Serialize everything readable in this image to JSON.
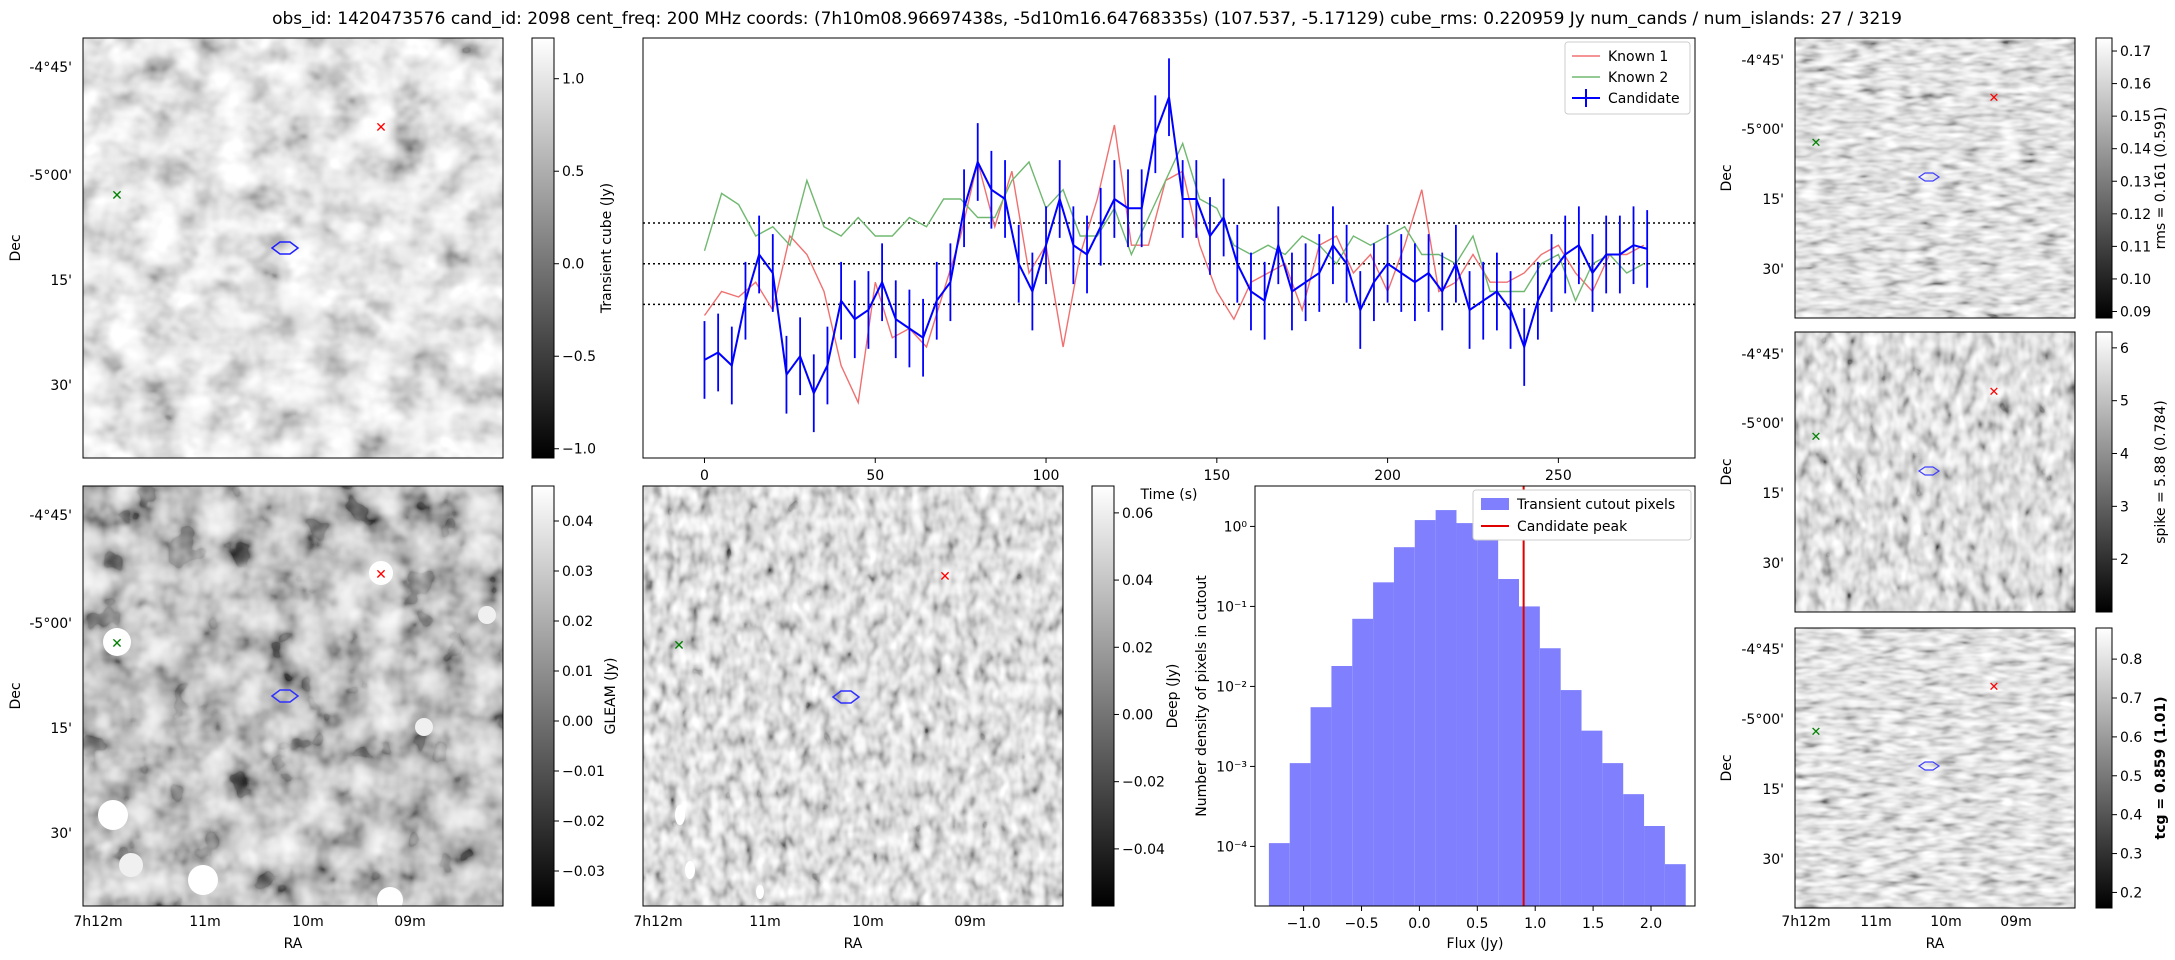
{
  "figure": {
    "title": "obs_id: 1420473576 cand_id: 2098 cent_freq: 200 MHz coords: (7h10m08.96697438s, -5d10m16.64768335s) (107.537, -5.17129) cube_rms: 0.220959 Jy num_cands / num_islands: 27 / 3219"
  },
  "sky_axes": {
    "dec_ticks": [
      "-4°45'",
      "-5°00'",
      "15'",
      "30'"
    ],
    "ra_ticks": [
      "7h12m",
      "11m",
      "10m",
      "09m"
    ],
    "dec_label": "Dec",
    "ra_label": "RA"
  },
  "chart_data": [
    {
      "id": "transient-cube-image",
      "type": "heatmap",
      "colorbar_label": "",
      "colorbar_ticks": [
        "1.0",
        "0.5",
        "0.0",
        "−0.5",
        "−1.0"
      ],
      "colorbar_values": [
        1.0,
        0.5,
        0.0,
        -0.5,
        -1.0
      ],
      "clim": [
        -1.05,
        1.22
      ],
      "markers": [
        {
          "color": "#ff0000",
          "symbol": "x",
          "ra_frac": 0.71,
          "dec_frac": 0.21
        },
        {
          "color": "#008000",
          "symbol": "x",
          "ra_frac": 0.08,
          "dec_frac": 0.37
        }
      ]
    },
    {
      "id": "lightcurve",
      "type": "line",
      "xlabel": "Time (s)",
      "ylabel": "Transient cube (Jy)",
      "xlim": [
        -18,
        290
      ],
      "ylim": [
        -1.05,
        1.22
      ],
      "x_ticks": [
        0,
        50,
        100,
        150,
        200,
        250
      ],
      "threshold_lines": [
        0.22,
        0.0,
        -0.22
      ],
      "legend": [
        "Known 1",
        "Known 2",
        "Candidate"
      ],
      "series": [
        {
          "name": "Known 1",
          "color": "#f07070",
          "x": [
            0,
            5,
            10,
            15,
            20,
            25,
            30,
            35,
            40,
            45,
            50,
            55,
            60,
            65,
            70,
            75,
            80,
            85,
            90,
            95,
            100,
            105,
            110,
            115,
            120,
            125,
            130,
            135,
            140,
            145,
            150,
            155,
            160,
            165,
            170,
            175,
            180,
            185,
            190,
            195,
            200,
            205,
            210,
            215,
            220,
            225,
            230,
            235,
            240,
            245,
            250,
            255,
            260,
            265,
            270,
            275
          ],
          "values": [
            -0.28,
            -0.15,
            -0.18,
            -0.1,
            -0.25,
            0.15,
            0.05,
            -0.15,
            -0.55,
            -0.75,
            -0.1,
            -0.4,
            -0.35,
            -0.45,
            -0.15,
            0.15,
            0.55,
            0.2,
            0.5,
            -0.05,
            0.1,
            -0.45,
            0.05,
            0.35,
            0.75,
            0.1,
            0.1,
            0.45,
            0.5,
            0.1,
            -0.15,
            -0.3,
            -0.1,
            -0.05,
            0.0,
            -0.25,
            0.1,
            0.15,
            -0.05,
            0.05,
            -0.15,
            0.1,
            0.4,
            -0.15,
            -0.1,
            0.05,
            -0.1,
            -0.1,
            -0.05,
            0.05,
            0.1,
            -0.05,
            -0.15,
            0.05,
            0.05,
            0.1
          ]
        },
        {
          "name": "Known 2",
          "color": "#70b870",
          "x": [
            0,
            5,
            10,
            15,
            20,
            25,
            30,
            35,
            40,
            45,
            50,
            55,
            60,
            65,
            70,
            75,
            80,
            85,
            90,
            95,
            100,
            105,
            110,
            115,
            120,
            125,
            130,
            135,
            140,
            145,
            150,
            155,
            160,
            165,
            170,
            175,
            180,
            185,
            190,
            195,
            200,
            205,
            210,
            215,
            220,
            225,
            230,
            235,
            240,
            245,
            250,
            255,
            260,
            265,
            270,
            275
          ],
          "values": [
            0.07,
            0.38,
            0.32,
            0.15,
            0.2,
            0.1,
            0.45,
            0.2,
            0.15,
            0.25,
            0.15,
            0.15,
            0.25,
            0.2,
            0.35,
            0.35,
            0.25,
            0.25,
            0.45,
            0.55,
            0.3,
            0.4,
            0.15,
            0.15,
            0.3,
            0.05,
            0.25,
            0.45,
            0.65,
            0.35,
            0.3,
            0.1,
            0.05,
            0.1,
            0.05,
            0.15,
            0.1,
            0.0,
            0.15,
            0.1,
            0.15,
            0.2,
            0.05,
            0.05,
            0.0,
            0.15,
            -0.15,
            -0.15,
            -0.15,
            0.0,
            0.05,
            -0.2,
            0.0,
            0.05,
            -0.05,
            0.0
          ]
        },
        {
          "name": "Candidate",
          "color": "#0000ff",
          "x": [
            0,
            4,
            8,
            12,
            16,
            20,
            24,
            28,
            32,
            36,
            40,
            44,
            48,
            52,
            56,
            60,
            64,
            68,
            72,
            76,
            80,
            84,
            88,
            92,
            96,
            100,
            104,
            108,
            112,
            116,
            120,
            124,
            128,
            132,
            136,
            140,
            144,
            148,
            152,
            156,
            160,
            164,
            168,
            172,
            176,
            180,
            184,
            188,
            192,
            196,
            200,
            204,
            208,
            212,
            216,
            220,
            224,
            228,
            232,
            236,
            240,
            244,
            248,
            252,
            256,
            260,
            264,
            268,
            272,
            276
          ],
          "values": [
            -0.52,
            -0.48,
            -0.55,
            -0.2,
            0.05,
            -0.05,
            -0.6,
            -0.5,
            -0.7,
            -0.55,
            -0.2,
            -0.3,
            -0.25,
            -0.1,
            -0.3,
            -0.35,
            -0.4,
            -0.2,
            -0.1,
            0.3,
            0.55,
            0.4,
            0.35,
            0.0,
            -0.15,
            0.1,
            0.35,
            0.1,
            0.05,
            0.2,
            0.35,
            0.3,
            0.3,
            0.7,
            0.9,
            0.35,
            0.35,
            0.15,
            0.25,
            0.0,
            -0.15,
            -0.2,
            0.1,
            -0.15,
            -0.1,
            -0.05,
            0.1,
            0.0,
            -0.25,
            -0.1,
            0.0,
            -0.05,
            -0.1,
            -0.05,
            -0.15,
            0.0,
            -0.25,
            -0.2,
            -0.15,
            -0.25,
            -0.45,
            -0.2,
            -0.05,
            0.05,
            0.1,
            -0.05,
            0.05,
            0.05,
            0.1,
            0.08
          ],
          "err": 0.21
        }
      ]
    },
    {
      "id": "rms-image",
      "type": "heatmap",
      "colorbar_label": "rms = 0.161 (0.591)",
      "colorbar_ticks": [
        "0.17",
        "0.16",
        "0.15",
        "0.14",
        "0.13",
        "0.12",
        "0.11",
        "0.10",
        "0.09"
      ],
      "colorbar_values": [
        0.17,
        0.16,
        0.15,
        0.14,
        0.13,
        0.12,
        0.11,
        0.1,
        0.09
      ],
      "clim": [
        0.088,
        0.174
      ]
    },
    {
      "id": "spike-image",
      "type": "heatmap",
      "colorbar_label": "spike = 5.88 (0.784)",
      "colorbar_ticks": [
        "6",
        "5",
        "4",
        "3",
        "2"
      ],
      "colorbar_values": [
        6,
        5,
        4,
        3,
        2
      ],
      "clim": [
        1.0,
        6.3
      ]
    },
    {
      "id": "tcg-image",
      "type": "heatmap",
      "colorbar_label": "tcg = 0.859 (1.01)",
      "colorbar_ticks": [
        "0.8",
        "0.7",
        "0.6",
        "0.5",
        "0.4",
        "0.3",
        "0.2"
      ],
      "colorbar_values": [
        0.8,
        0.7,
        0.6,
        0.5,
        0.4,
        0.3,
        0.2
      ],
      "clim": [
        0.16,
        0.88
      ]
    },
    {
      "id": "gleam-image",
      "type": "heatmap",
      "colorbar_label": "GLEAM (Jy)",
      "colorbar_ticks": [
        "0.04",
        "0.03",
        "0.02",
        "0.01",
        "0.00",
        "−0.01",
        "−0.02",
        "−0.03"
      ],
      "colorbar_values": [
        0.04,
        0.03,
        0.02,
        0.01,
        0.0,
        -0.01,
        -0.02,
        -0.03
      ],
      "clim": [
        -0.037,
        0.047
      ]
    },
    {
      "id": "deep-image",
      "type": "heatmap",
      "colorbar_label": "Deep (Jy)",
      "colorbar_ticks": [
        "0.06",
        "0.04",
        "0.02",
        "0.00",
        "−0.02",
        "−0.04"
      ],
      "colorbar_values": [
        0.06,
        0.04,
        0.02,
        0.0,
        -0.02,
        -0.04
      ],
      "clim": [
        -0.057,
        0.068
      ]
    },
    {
      "id": "pixel-histogram",
      "type": "bar",
      "xlabel": "Flux (Jy)",
      "ylabel": "Number density of pixels in cutout",
      "x_ticks": [
        "−1.0",
        "−0.5",
        "0.0",
        "0.5",
        "1.0",
        "1.5",
        "2.0"
      ],
      "x_tick_values": [
        -1.0,
        -0.5,
        0.0,
        0.5,
        1.0,
        1.5,
        2.0
      ],
      "xlim": [
        -1.42,
        2.38
      ],
      "y_scale": "log",
      "ylim": [
        1.8e-05,
        3.2
      ],
      "y_ticks": [
        "10⁰",
        "10⁻¹",
        "10⁻²",
        "10⁻³",
        "10⁻⁴"
      ],
      "y_tick_values": [
        1,
        0.1,
        0.01,
        0.001,
        0.0001
      ],
      "bin_edges": [
        -1.3,
        -1.12,
        -0.94,
        -0.76,
        -0.58,
        -0.4,
        -0.22,
        -0.04,
        0.14,
        0.32,
        0.5,
        0.68,
        0.86,
        1.04,
        1.22,
        1.4,
        1.58,
        1.76,
        1.94,
        2.12,
        2.3
      ],
      "values": [
        0.00011,
        0.0011,
        0.0055,
        0.018,
        0.07,
        0.2,
        0.55,
        1.2,
        1.6,
        1.1,
        0.7,
        0.22,
        0.1,
        0.03,
        0.009,
        0.0028,
        0.0011,
        0.00045,
        0.00018,
        6e-05
      ],
      "candidate_peak": 0.9,
      "legend": [
        "Transient cutout pixels",
        "Candidate peak"
      ],
      "bar_color": "#8080ff",
      "peak_color": "#e00000"
    }
  ]
}
